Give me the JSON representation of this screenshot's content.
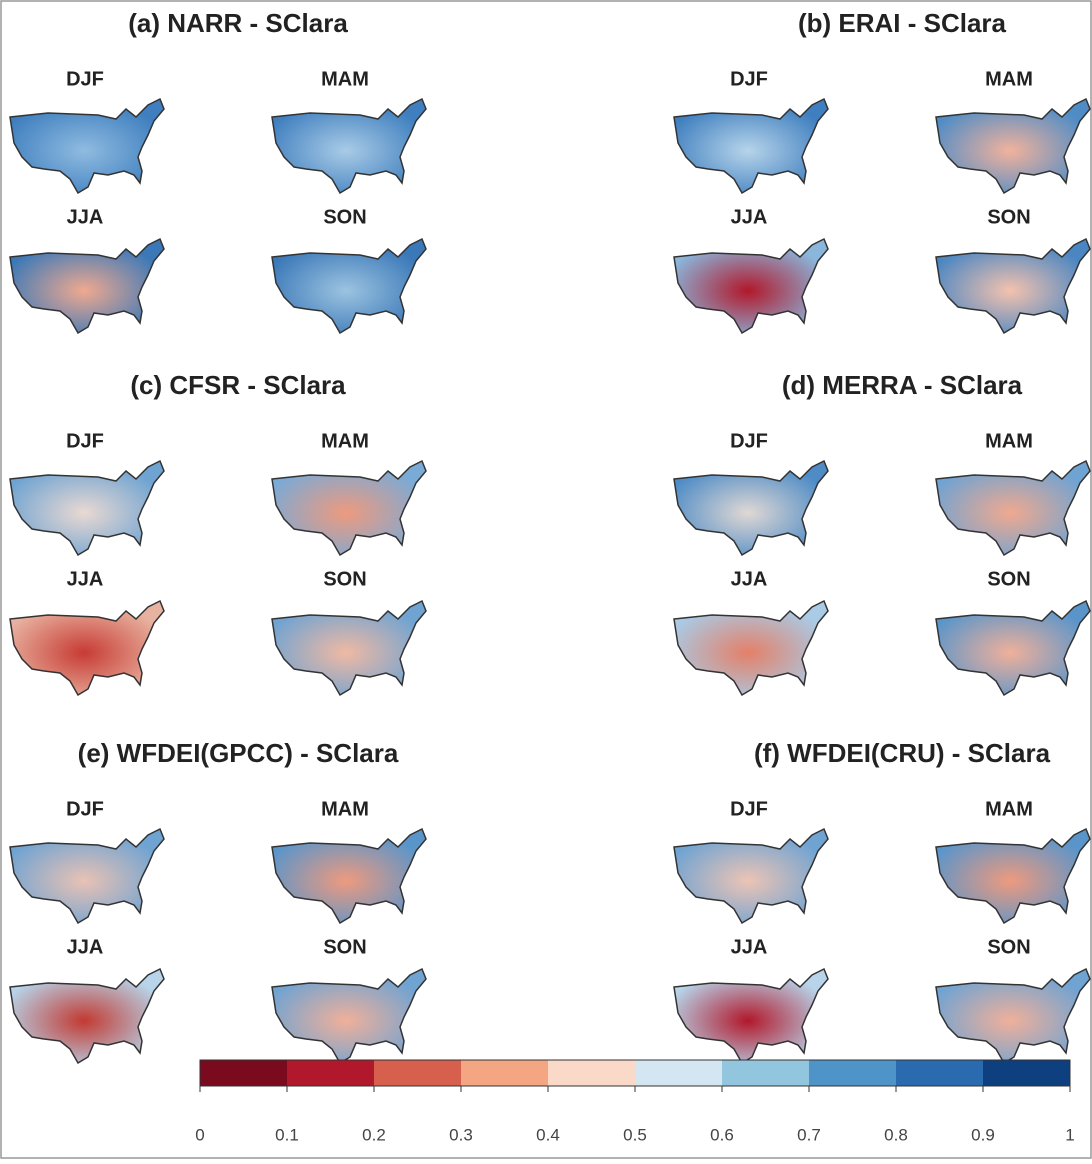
{
  "panels": [
    {
      "title": "(a)  NARR - SClara",
      "maps": [
        {
          "season": "DJF",
          "base": "#3f7fbf",
          "center": "#8fbbe0"
        },
        {
          "season": "MAM",
          "base": "#3f7fbf",
          "center": "#a9cbe6"
        },
        {
          "season": "JJA",
          "base": "#3a78b8",
          "center": "#f0a98f"
        },
        {
          "season": "SON",
          "base": "#3a78b8",
          "center": "#9cc3e0"
        }
      ]
    },
    {
      "title": "(b)  ERAI - SClara",
      "maps": [
        {
          "season": "DJF",
          "base": "#3f7fbf",
          "center": "#b7d4ea"
        },
        {
          "season": "MAM",
          "base": "#4f8cc6",
          "center": "#f2b29c"
        },
        {
          "season": "JJA",
          "base": "#8ab6dc",
          "center": "#b2182b"
        },
        {
          "season": "SON",
          "base": "#4a86c2",
          "center": "#f4c2ae"
        }
      ]
    },
    {
      "title": "(c)  CFSR - SClara",
      "maps": [
        {
          "season": "DJF",
          "base": "#6fa3d2",
          "center": "#e9d9d2"
        },
        {
          "season": "MAM",
          "base": "#7aaad6",
          "center": "#ee9a7e"
        },
        {
          "season": "JJA",
          "base": "#e8b2a0",
          "center": "#c73b34"
        },
        {
          "season": "SON",
          "base": "#6fa3d2",
          "center": "#f0b9a3"
        }
      ]
    },
    {
      "title": "(d)  MERRA - SClara",
      "maps": [
        {
          "season": "DJF",
          "base": "#4f8cc6",
          "center": "#e0d8d4"
        },
        {
          "season": "MAM",
          "base": "#6fa3d2",
          "center": "#f0a98f"
        },
        {
          "season": "JJA",
          "base": "#a9cbe6",
          "center": "#e48068"
        },
        {
          "season": "SON",
          "base": "#5a95ca",
          "center": "#f0b09a"
        }
      ]
    },
    {
      "title": "(e)  WFDEI(GPCC) - SClara",
      "maps": [
        {
          "season": "DJF",
          "base": "#6fa3d2",
          "center": "#e9c2b4"
        },
        {
          "season": "MAM",
          "base": "#5a95ca",
          "center": "#ee9a7e"
        },
        {
          "season": "JJA",
          "base": "#b7d4ea",
          "center": "#c23a32"
        },
        {
          "season": "SON",
          "base": "#6fa3d2",
          "center": "#f0b09a"
        }
      ]
    },
    {
      "title": "(f)  WFDEI(CRU) - SClara",
      "maps": [
        {
          "season": "DJF",
          "base": "#6fa3d2",
          "center": "#ecc4b5"
        },
        {
          "season": "MAM",
          "base": "#5a95ca",
          "center": "#ee9a7e"
        },
        {
          "season": "JJA",
          "base": "#b7d4ea",
          "center": "#b2182b"
        },
        {
          "season": "SON",
          "base": "#6fa3d2",
          "center": "#f0b09a"
        }
      ]
    }
  ],
  "colorbar": {
    "ticks": [
      0,
      0.1,
      0.2,
      0.3,
      0.4,
      0.5,
      0.6,
      0.7,
      0.8,
      0.9,
      1
    ],
    "colors": [
      "#7a0a1e",
      "#b2182b",
      "#d6604d",
      "#f4a582",
      "#fbd9c8",
      "#d4e6f2",
      "#92c5de",
      "#4f94c8",
      "#2a6bb0",
      "#0e3f7e"
    ]
  }
}
